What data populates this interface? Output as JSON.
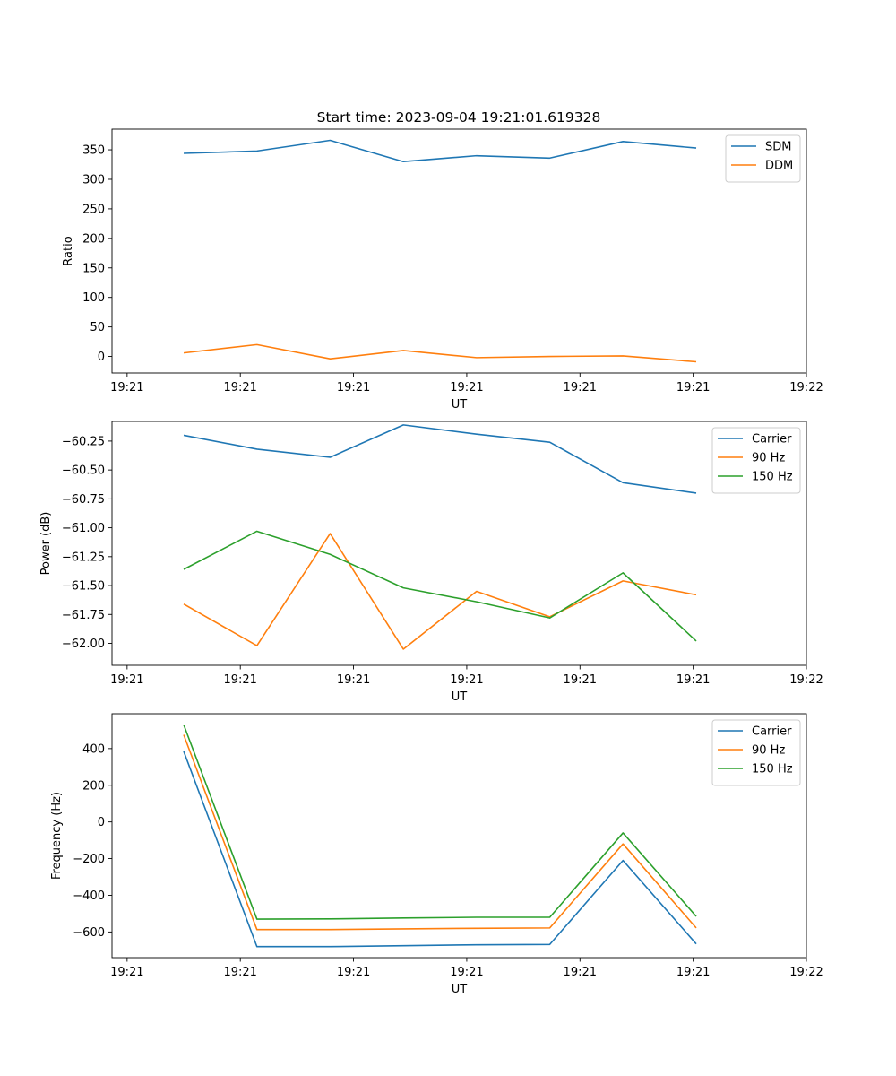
{
  "figure": {
    "title": "Start time: 2023-09-04 19:21:01.619328"
  },
  "colors": {
    "blue": "#1f77b4",
    "orange": "#ff7f0e",
    "green": "#2ca02c"
  },
  "chart_data": [
    {
      "type": "line",
      "xlabel": "UT",
      "ylabel": "Ratio",
      "xlim": [
        0,
        9.2
      ],
      "ylim": [
        -28,
        385
      ],
      "x": [
        0.95,
        1.92,
        2.89,
        3.86,
        4.83,
        5.8,
        6.77,
        7.74
      ],
      "x_ticks": [
        0.2,
        1.7,
        3.2,
        4.7,
        6.2,
        7.7,
        9.2
      ],
      "x_tick_labels": [
        "19:21",
        "19:21",
        "19:21",
        "19:21",
        "19:21",
        "19:21",
        "19:22"
      ],
      "y_ticks": [
        0,
        50,
        100,
        150,
        200,
        250,
        300,
        350
      ],
      "y_tick_labels": [
        "0",
        "50",
        "100",
        "150",
        "200",
        "250",
        "300",
        "350"
      ],
      "legend": "top-right",
      "series": [
        {
          "name": "SDM",
          "color": "#1f77b4",
          "values": [
            344,
            348,
            366,
            330,
            340,
            336,
            364,
            353
          ]
        },
        {
          "name": "DDM",
          "color": "#ff7f0e",
          "values": [
            6,
            20,
            -4,
            10,
            -2,
            0,
            1,
            -9
          ]
        }
      ]
    },
    {
      "type": "line",
      "xlabel": "UT",
      "ylabel": "Power (dB)",
      "xlim": [
        0,
        9.2
      ],
      "ylim": [
        -62.19,
        -60.08
      ],
      "x": [
        0.95,
        1.92,
        2.89,
        3.86,
        4.83,
        5.8,
        6.77,
        7.74
      ],
      "x_ticks": [
        0.2,
        1.7,
        3.2,
        4.7,
        6.2,
        7.7,
        9.2
      ],
      "x_tick_labels": [
        "19:21",
        "19:21",
        "19:21",
        "19:21",
        "19:21",
        "19:21",
        "19:22"
      ],
      "y_ticks": [
        -62.0,
        -61.75,
        -61.5,
        -61.25,
        -61.0,
        -60.75,
        -60.5,
        -60.25
      ],
      "y_tick_labels": [
        "−62.00",
        "−61.75",
        "−61.50",
        "−61.25",
        "−61.00",
        "−60.75",
        "−60.50",
        "−60.25"
      ],
      "legend": "top-right",
      "series": [
        {
          "name": "Carrier",
          "color": "#1f77b4",
          "values": [
            -60.2,
            -60.32,
            -60.39,
            -60.11,
            -60.19,
            -60.26,
            -60.61,
            -60.7
          ]
        },
        {
          "name": "90 Hz",
          "color": "#ff7f0e",
          "values": [
            -61.66,
            -62.02,
            -61.05,
            -62.05,
            -61.55,
            -61.77,
            -61.46,
            -61.58
          ]
        },
        {
          "name": "150 Hz",
          "color": "#2ca02c",
          "values": [
            -61.36,
            -61.03,
            -61.23,
            -61.52,
            -61.64,
            -61.78,
            -61.39,
            -61.98
          ]
        }
      ]
    },
    {
      "type": "line",
      "xlabel": "UT",
      "ylabel": "Frequency (Hz)",
      "xlim": [
        0,
        9.2
      ],
      "ylim": [
        -740,
        590
      ],
      "x": [
        0.95,
        1.92,
        2.89,
        3.86,
        4.83,
        5.8,
        6.77,
        7.74
      ],
      "x_ticks": [
        0.2,
        1.7,
        3.2,
        4.7,
        6.2,
        7.7,
        9.2
      ],
      "x_tick_labels": [
        "19:21",
        "19:21",
        "19:21",
        "19:21",
        "19:21",
        "19:21",
        "19:22"
      ],
      "y_ticks": [
        -600,
        -400,
        -200,
        0,
        200,
        400
      ],
      "y_tick_labels": [
        "−600",
        "−400",
        "−200",
        "0",
        "200",
        "400"
      ],
      "legend": "top-right",
      "series": [
        {
          "name": "Carrier",
          "color": "#1f77b4",
          "values": [
            385,
            -680,
            -680,
            -675,
            -670,
            -668,
            -210,
            -665
          ]
        },
        {
          "name": "90 Hz",
          "color": "#ff7f0e",
          "values": [
            475,
            -587,
            -587,
            -583,
            -580,
            -578,
            -120,
            -578
          ]
        },
        {
          "name": "150 Hz",
          "color": "#2ca02c",
          "values": [
            530,
            -530,
            -529,
            -524,
            -520,
            -520,
            -60,
            -515
          ]
        }
      ]
    }
  ]
}
